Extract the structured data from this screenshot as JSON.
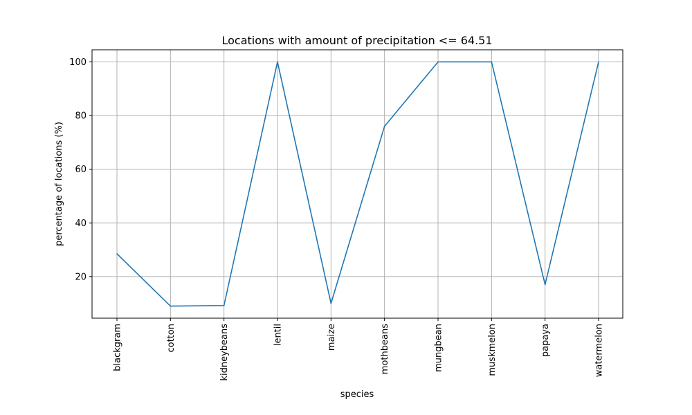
{
  "chart_data": {
    "type": "line",
    "title": "Locations with amount of precipitation <= 64.51",
    "xlabel": "species",
    "ylabel": "percentage of locations (%)",
    "categories": [
      "blackgram",
      "cotton",
      "kidneybeans",
      "lentil",
      "maize",
      "mothbeans",
      "mungbean",
      "muskmelon",
      "papaya",
      "watermelon"
    ],
    "series": [
      {
        "values": [
          28.5,
          9.0,
          9.2,
          100,
          10.0,
          76.0,
          100,
          100,
          17.0,
          100
        ],
        "color": "#1f77b4"
      }
    ],
    "ylim": [
      4.5,
      104.5
    ],
    "yticks": [
      20,
      40,
      60,
      80,
      100
    ],
    "grid": true,
    "legend": "none"
  }
}
